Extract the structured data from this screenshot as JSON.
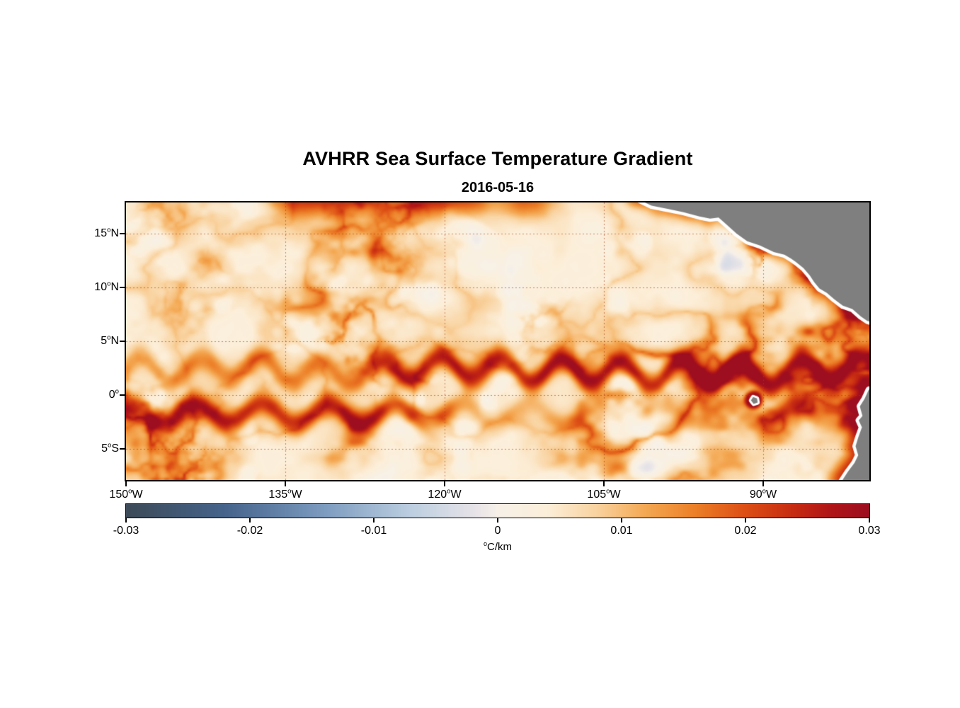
{
  "title": "AVHRR Sea Surface Temperature Gradient",
  "subtitle": "2016-05-16",
  "chart_data": {
    "type": "heatmap",
    "title": "AVHRR Sea Surface Temperature Gradient",
    "date": "2016-05-16",
    "variable": "sea surface temperature gradient magnitude",
    "units": "°C/km",
    "extent": {
      "lon_min_west_deg": 150,
      "lon_max_west_deg": 80,
      "lat_min_deg": -7.9,
      "lat_max_deg": 17.9
    },
    "x_ticks": [
      {
        "label": "150°W",
        "lon": 150
      },
      {
        "label": "135°W",
        "lon": 135
      },
      {
        "label": "120°W",
        "lon": 120
      },
      {
        "label": "105°W",
        "lon": 105
      },
      {
        "label": "90°W",
        "lon": 90
      }
    ],
    "y_ticks": [
      {
        "label": "15°N",
        "lat": 15
      },
      {
        "label": "10°N",
        "lat": 10
      },
      {
        "label": "5°N",
        "lat": 5
      },
      {
        "label": "0°",
        "lat": 0
      },
      {
        "label": "5°S",
        "lat": -5
      }
    ],
    "grid": {
      "visible": true,
      "style": "dotted",
      "color": "#a53c14"
    },
    "colorbar": {
      "label": "°C/km",
      "min": -0.03,
      "max": 0.03,
      "tick_values": [
        -0.03,
        -0.02,
        -0.01,
        0,
        0.01,
        0.02,
        0.03
      ],
      "tick_labels": [
        "-0.03",
        "-0.02",
        "-0.01",
        "0",
        "0.01",
        "0.02",
        "0.03"
      ]
    },
    "colormap_stops": [
      {
        "value": -0.03,
        "color": "#3d4a58"
      },
      {
        "value": -0.022,
        "color": "#46648c"
      },
      {
        "value": -0.014,
        "color": "#7d9cc0"
      },
      {
        "value": -0.007,
        "color": "#bdcfe1"
      },
      {
        "value": -0.002,
        "color": "#e6e3e8"
      },
      {
        "value": 0.0,
        "color": "#f7f1e8"
      },
      {
        "value": 0.004,
        "color": "#fcefda"
      },
      {
        "value": 0.008,
        "color": "#f9d3a0"
      },
      {
        "value": 0.012,
        "color": "#f4a852"
      },
      {
        "value": 0.016,
        "color": "#ec7f27"
      },
      {
        "value": 0.02,
        "color": "#dd4f15"
      },
      {
        "value": 0.024,
        "color": "#c62b12"
      },
      {
        "value": 0.027,
        "color": "#b01518"
      },
      {
        "value": 0.03,
        "color": "#9c0e20"
      }
    ],
    "features": {
      "north_equatorial_front": {
        "lat_center": 2.3,
        "amplitude": 0.027,
        "strong_east_of_lon_west": 120
      },
      "south_equatorial_front": {
        "lat_center": -1.9,
        "amplitude": 0.022,
        "strong_west_of_lon_west": 118
      },
      "top_band": {
        "lat_center": 18.3,
        "amplitude": 0.022
      },
      "peru_coastal_front": {
        "amplitude": 0.024
      },
      "central_america_coastal": {
        "amplitude": 0.016
      },
      "galapagos": {
        "lon_west": 90.9,
        "lat": -0.45
      }
    },
    "land": {
      "fill": "#7f7f7f",
      "coast_halo": "#ffffff",
      "central_america_coast": [
        [
          102.0,
          18.3
        ],
        [
          100.5,
          17.6
        ],
        [
          99.0,
          17.3
        ],
        [
          97.5,
          17.0
        ],
        [
          96.0,
          16.6
        ],
        [
          95.0,
          16.4
        ],
        [
          94.2,
          16.5
        ],
        [
          93.5,
          15.9
        ],
        [
          92.5,
          15.0
        ],
        [
          91.5,
          14.3
        ],
        [
          90.3,
          13.9
        ],
        [
          89.0,
          13.3
        ],
        [
          88.0,
          13.05
        ],
        [
          87.4,
          12.7
        ],
        [
          86.9,
          12.35
        ],
        [
          86.2,
          11.8
        ],
        [
          85.6,
          11.1
        ],
        [
          85.2,
          10.5
        ],
        [
          84.7,
          9.9
        ],
        [
          84.0,
          9.5
        ],
        [
          83.3,
          8.9
        ],
        [
          82.5,
          8.3
        ],
        [
          81.6,
          8.0
        ],
        [
          80.8,
          7.3
        ],
        [
          80.2,
          6.9
        ],
        [
          79.2,
          6.6
        ]
      ],
      "central_america_close": [
        [
          77.5,
          6.5
        ],
        [
          77.5,
          19.5
        ],
        [
          103.5,
          19.5
        ]
      ],
      "south_america_coast": [
        [
          80.05,
          0.5
        ],
        [
          80.45,
          -0.35
        ],
        [
          80.9,
          -1.05
        ],
        [
          80.65,
          -1.95
        ],
        [
          81.0,
          -2.35
        ],
        [
          80.7,
          -3.0
        ],
        [
          81.05,
          -3.95
        ],
        [
          81.3,
          -4.75
        ],
        [
          81.05,
          -5.6
        ],
        [
          81.4,
          -6.3
        ],
        [
          82.0,
          -7.1
        ],
        [
          82.6,
          -8.0
        ],
        [
          82.9,
          -8.8
        ]
      ],
      "south_america_close": [
        [
          77.5,
          -9.5
        ],
        [
          77.5,
          1.3
        ]
      ],
      "galapagos_island": [
        [
          91.15,
          -0.5
        ],
        [
          90.95,
          -0.18
        ],
        [
          90.58,
          -0.32
        ],
        [
          90.52,
          -0.7
        ],
        [
          90.9,
          -0.82
        ]
      ]
    }
  }
}
